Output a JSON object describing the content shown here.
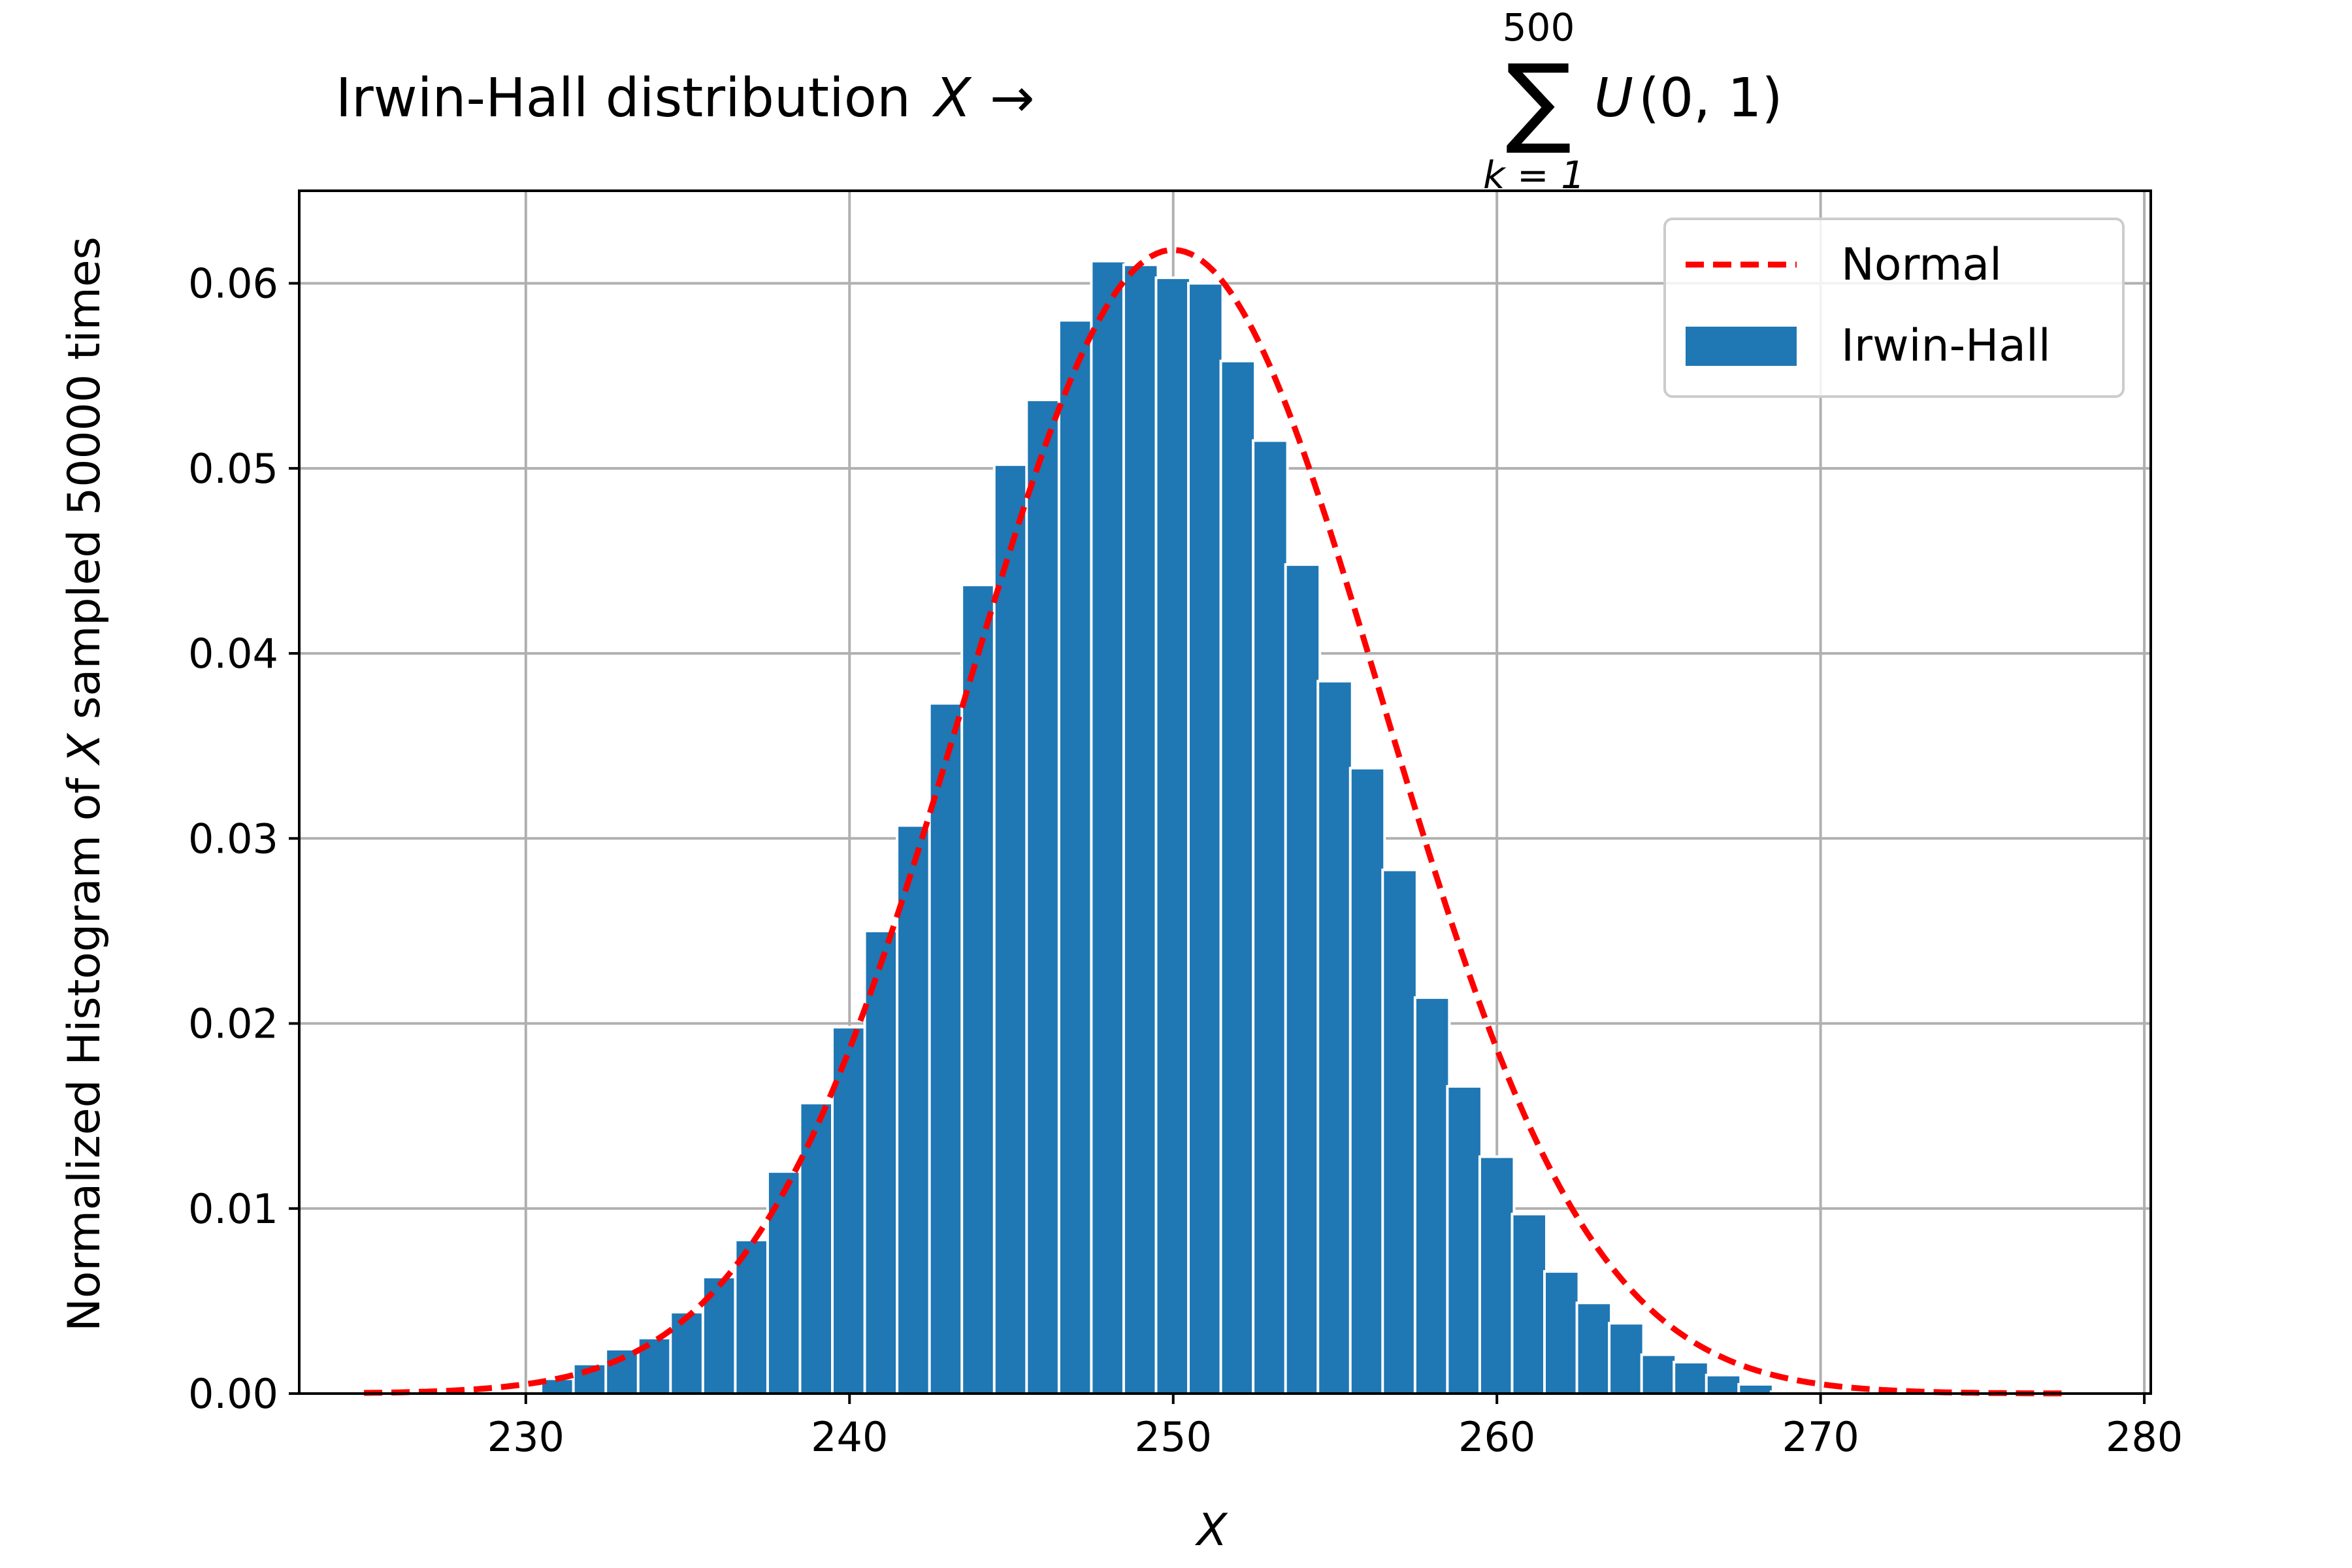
{
  "chart_data": {
    "type": "bar",
    "title": {
      "prefix": "Irwin-Hall distribution ",
      "var": "X",
      "arrow": "→",
      "sum": "∑",
      "upper": "500",
      "lower": "k = 1",
      "func": "U",
      "args": "(0, 1)"
    },
    "xlabel": "X",
    "ylabel": {
      "pre": "Normalized Histogram of ",
      "var": "X",
      "post": " sampled 50000 times"
    },
    "xlim": [
      223,
      280.2
    ],
    "ylim": [
      0,
      0.065
    ],
    "xticks": [
      230,
      240,
      250,
      260,
      270,
      280
    ],
    "yticks": [
      0.0,
      0.01,
      0.02,
      0.03,
      0.04,
      0.05,
      0.06
    ],
    "ytick_labels": [
      "0.00",
      "0.01",
      "0.02",
      "0.03",
      "0.04",
      "0.05",
      "0.06"
    ],
    "grid": true,
    "legend_position": "top-right",
    "colors": {
      "bars": "#1f77b4",
      "normal": "#ff0000",
      "grid": "#b0b0b0"
    },
    "bin_width": 1.06,
    "bars": {
      "name": "Irwin-Hall",
      "x": [
        231.0,
        232.0,
        233.0,
        234.0,
        235.0,
        236.0,
        237.0,
        238.0,
        239.0,
        240.0,
        241.0,
        242.0,
        243.0,
        244.0,
        245.0,
        246.0,
        247.0,
        248.0,
        249.0,
        250.0,
        251.0,
        252.0,
        253.0,
        254.0,
        255.0,
        256.0,
        257.0,
        258.0,
        259.0,
        260.0,
        261.0,
        262.0,
        263.0,
        264.0,
        265.0,
        266.0,
        267.0,
        268.0,
        269.0
      ],
      "values": [
        0.0008,
        0.0016,
        0.0024,
        0.003,
        0.0044,
        0.0063,
        0.0083,
        0.012,
        0.0157,
        0.0198,
        0.025,
        0.0307,
        0.0373,
        0.0437,
        0.0502,
        0.0537,
        0.058,
        0.0612,
        0.061,
        0.0603,
        0.06,
        0.0558,
        0.0515,
        0.0448,
        0.0385,
        0.0338,
        0.0283,
        0.0214,
        0.0166,
        0.0128,
        0.0097,
        0.0066,
        0.0049,
        0.0038,
        0.0021,
        0.0017,
        0.001,
        0.0005,
        0.0001
      ]
    },
    "normal": {
      "name": "Normal",
      "mean": 250,
      "std": 6.455,
      "x_range": [
        225,
        277.5
      ]
    }
  }
}
